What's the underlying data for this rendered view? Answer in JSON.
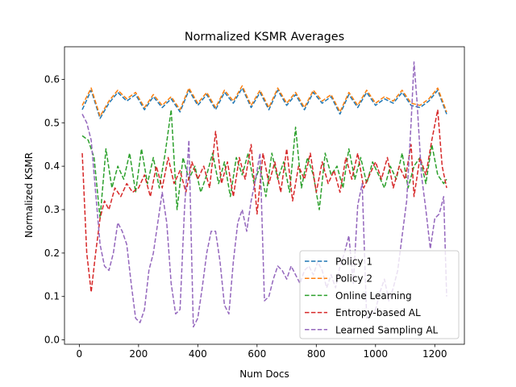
{
  "chart_data": {
    "type": "line",
    "title": "Normalized KSMR Averages",
    "xlabel": "Num Docs",
    "ylabel": "Normalized KSMR",
    "xlim": [
      -50,
      1300
    ],
    "ylim": [
      -0.01,
      0.675
    ],
    "xticks": [
      0,
      200,
      400,
      600,
      800,
      1000,
      1200
    ],
    "xtick_labels": [
      "0",
      "200",
      "400",
      "600",
      "800",
      "1000",
      "1200"
    ],
    "yticks": [
      0.0,
      0.1,
      0.2,
      0.3,
      0.4,
      0.5,
      0.6
    ],
    "ytick_labels": [
      "0.0",
      "0.1",
      "0.2",
      "0.3",
      "0.4",
      "0.5",
      "0.6"
    ],
    "grid": false,
    "legend_position": "lower-right",
    "line_style": "dashed",
    "series": [
      {
        "name": "Policy 1",
        "color": "#1f77b4",
        "x": [
          10,
          40,
          70,
          100,
          130,
          160,
          190,
          220,
          250,
          280,
          310,
          340,
          370,
          400,
          430,
          460,
          490,
          520,
          550,
          580,
          610,
          640,
          670,
          700,
          730,
          760,
          790,
          820,
          850,
          880,
          910,
          940,
          970,
          1000,
          1030,
          1060,
          1090,
          1120,
          1150,
          1180,
          1210,
          1240
        ],
        "y": [
          0.53,
          0.575,
          0.51,
          0.545,
          0.57,
          0.55,
          0.565,
          0.53,
          0.56,
          0.535,
          0.555,
          0.525,
          0.575,
          0.54,
          0.565,
          0.53,
          0.57,
          0.545,
          0.58,
          0.535,
          0.57,
          0.53,
          0.575,
          0.54,
          0.565,
          0.53,
          0.57,
          0.545,
          0.56,
          0.52,
          0.565,
          0.535,
          0.57,
          0.54,
          0.555,
          0.545,
          0.57,
          0.54,
          0.535,
          0.55,
          0.575,
          0.52
        ]
      },
      {
        "name": "Policy 2",
        "color": "#ff7f0e",
        "x": [
          10,
          40,
          70,
          100,
          130,
          160,
          190,
          220,
          250,
          280,
          310,
          340,
          370,
          400,
          430,
          460,
          490,
          520,
          550,
          580,
          610,
          640,
          670,
          700,
          730,
          760,
          790,
          820,
          850,
          880,
          910,
          940,
          970,
          1000,
          1030,
          1060,
          1090,
          1120,
          1150,
          1180,
          1210,
          1240
        ],
        "y": [
          0.54,
          0.58,
          0.515,
          0.55,
          0.575,
          0.555,
          0.57,
          0.535,
          0.565,
          0.54,
          0.56,
          0.53,
          0.58,
          0.545,
          0.57,
          0.535,
          0.575,
          0.55,
          0.585,
          0.54,
          0.575,
          0.535,
          0.58,
          0.545,
          0.57,
          0.535,
          0.575,
          0.55,
          0.565,
          0.525,
          0.57,
          0.54,
          0.575,
          0.545,
          0.56,
          0.55,
          0.575,
          0.545,
          0.54,
          0.555,
          0.58,
          0.525
        ]
      },
      {
        "name": "Online Learning",
        "color": "#2ca02c",
        "x": [
          10,
          30,
          50,
          70,
          90,
          110,
          130,
          150,
          170,
          190,
          210,
          230,
          250,
          270,
          290,
          310,
          330,
          350,
          370,
          390,
          410,
          430,
          450,
          470,
          490,
          510,
          530,
          550,
          570,
          590,
          610,
          630,
          650,
          670,
          690,
          710,
          730,
          750,
          770,
          790,
          810,
          830,
          850,
          870,
          890,
          910,
          930,
          950,
          970,
          990,
          1010,
          1030,
          1050,
          1070,
          1090,
          1110,
          1130,
          1150,
          1170,
          1190,
          1210,
          1230,
          1240
        ],
        "y": [
          0.47,
          0.46,
          0.42,
          0.28,
          0.44,
          0.35,
          0.4,
          0.37,
          0.43,
          0.34,
          0.44,
          0.36,
          0.42,
          0.35,
          0.43,
          0.53,
          0.3,
          0.42,
          0.37,
          0.4,
          0.34,
          0.38,
          0.43,
          0.36,
          0.41,
          0.33,
          0.42,
          0.38,
          0.43,
          0.36,
          0.4,
          0.33,
          0.43,
          0.37,
          0.41,
          0.34,
          0.49,
          0.35,
          0.42,
          0.38,
          0.3,
          0.43,
          0.38,
          0.4,
          0.35,
          0.44,
          0.37,
          0.42,
          0.36,
          0.41,
          0.38,
          0.35,
          0.4,
          0.37,
          0.43,
          0.35,
          0.4,
          0.42,
          0.36,
          0.45,
          0.38,
          0.36,
          0.37
        ]
      },
      {
        "name": "Entropy-based AL",
        "color": "#d62728",
        "x": [
          10,
          25,
          40,
          55,
          70,
          85,
          100,
          120,
          140,
          160,
          180,
          200,
          220,
          240,
          260,
          280,
          300,
          320,
          340,
          360,
          380,
          400,
          420,
          440,
          460,
          480,
          500,
          520,
          540,
          560,
          580,
          600,
          620,
          640,
          660,
          680,
          700,
          720,
          740,
          760,
          780,
          800,
          820,
          840,
          860,
          880,
          900,
          920,
          940,
          960,
          980,
          1000,
          1020,
          1040,
          1060,
          1080,
          1100,
          1120,
          1130,
          1150,
          1170,
          1190,
          1210,
          1225,
          1240
        ],
        "y": [
          0.43,
          0.2,
          0.11,
          0.2,
          0.28,
          0.32,
          0.3,
          0.35,
          0.33,
          0.36,
          0.34,
          0.35,
          0.38,
          0.33,
          0.4,
          0.35,
          0.42,
          0.36,
          0.39,
          0.34,
          0.41,
          0.37,
          0.4,
          0.35,
          0.48,
          0.36,
          0.41,
          0.33,
          0.42,
          0.37,
          0.45,
          0.29,
          0.43,
          0.36,
          0.41,
          0.34,
          0.44,
          0.32,
          0.4,
          0.37,
          0.43,
          0.34,
          0.41,
          0.36,
          0.39,
          0.34,
          0.42,
          0.37,
          0.43,
          0.35,
          0.38,
          0.41,
          0.37,
          0.42,
          0.35,
          0.4,
          0.37,
          0.45,
          0.33,
          0.42,
          0.38,
          0.46,
          0.53,
          0.4,
          0.35
        ]
      },
      {
        "name": "Learned Sampling AL",
        "color": "#9467bd",
        "x": [
          10,
          25,
          40,
          55,
          70,
          85,
          100,
          115,
          130,
          145,
          160,
          175,
          190,
          205,
          220,
          235,
          250,
          265,
          280,
          295,
          310,
          325,
          340,
          355,
          370,
          385,
          400,
          415,
          430,
          445,
          460,
          475,
          490,
          505,
          520,
          535,
          550,
          565,
          580,
          595,
          610,
          625,
          640,
          655,
          670,
          685,
          700,
          715,
          730,
          745,
          760,
          775,
          790,
          805,
          820,
          835,
          850,
          865,
          880,
          895,
          910,
          925,
          940,
          955,
          970,
          985,
          1000,
          1015,
          1030,
          1045,
          1060,
          1075,
          1090,
          1105,
          1120,
          1130,
          1140,
          1155,
          1170,
          1185,
          1200,
          1215,
          1230,
          1240
        ],
        "y": [
          0.52,
          0.5,
          0.46,
          0.34,
          0.22,
          0.17,
          0.16,
          0.2,
          0.27,
          0.25,
          0.22,
          0.13,
          0.05,
          0.04,
          0.07,
          0.16,
          0.2,
          0.27,
          0.34,
          0.27,
          0.13,
          0.06,
          0.07,
          0.3,
          0.46,
          0.03,
          0.05,
          0.12,
          0.2,
          0.25,
          0.25,
          0.18,
          0.08,
          0.06,
          0.18,
          0.27,
          0.3,
          0.25,
          0.32,
          0.37,
          0.43,
          0.09,
          0.1,
          0.14,
          0.17,
          0.16,
          0.14,
          0.17,
          0.15,
          0.13,
          0.16,
          0.17,
          0.15,
          0.18,
          0.16,
          0.12,
          0.15,
          0.12,
          0.17,
          0.2,
          0.24,
          0.13,
          0.31,
          0.36,
          0.05,
          0.06,
          0.07,
          0.11,
          0.14,
          0.09,
          0.12,
          0.16,
          0.24,
          0.32,
          0.5,
          0.64,
          0.55,
          0.38,
          0.3,
          0.21,
          0.28,
          0.29,
          0.33,
          0.1
        ]
      }
    ]
  }
}
